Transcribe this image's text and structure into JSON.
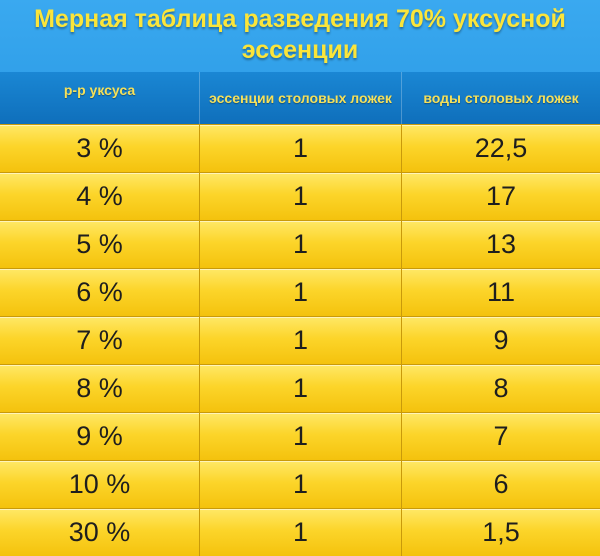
{
  "title": {
    "line1": "Мерная таблица разведения 70% уксусной",
    "line2": "эссенции"
  },
  "columns": [
    "р-р уксуса",
    "эссенции столовых ложек",
    "воды столовых ложек"
  ],
  "colors": {
    "title_text": "#fbe53a",
    "header_background": "#1a87d4",
    "row_background": "#fcd52a"
  },
  "rows": [
    [
      "3 %",
      "1",
      "22,5"
    ],
    [
      "4 %",
      "1",
      "17"
    ],
    [
      "5 %",
      "1",
      "13"
    ],
    [
      "6 %",
      "1",
      "11"
    ],
    [
      "7 %",
      "1",
      "9"
    ],
    [
      "8 %",
      "1",
      "8"
    ],
    [
      "9 %",
      "1",
      "7"
    ],
    [
      "10 %",
      "1",
      "6"
    ],
    [
      "30 %",
      "1",
      "1,5"
    ]
  ]
}
